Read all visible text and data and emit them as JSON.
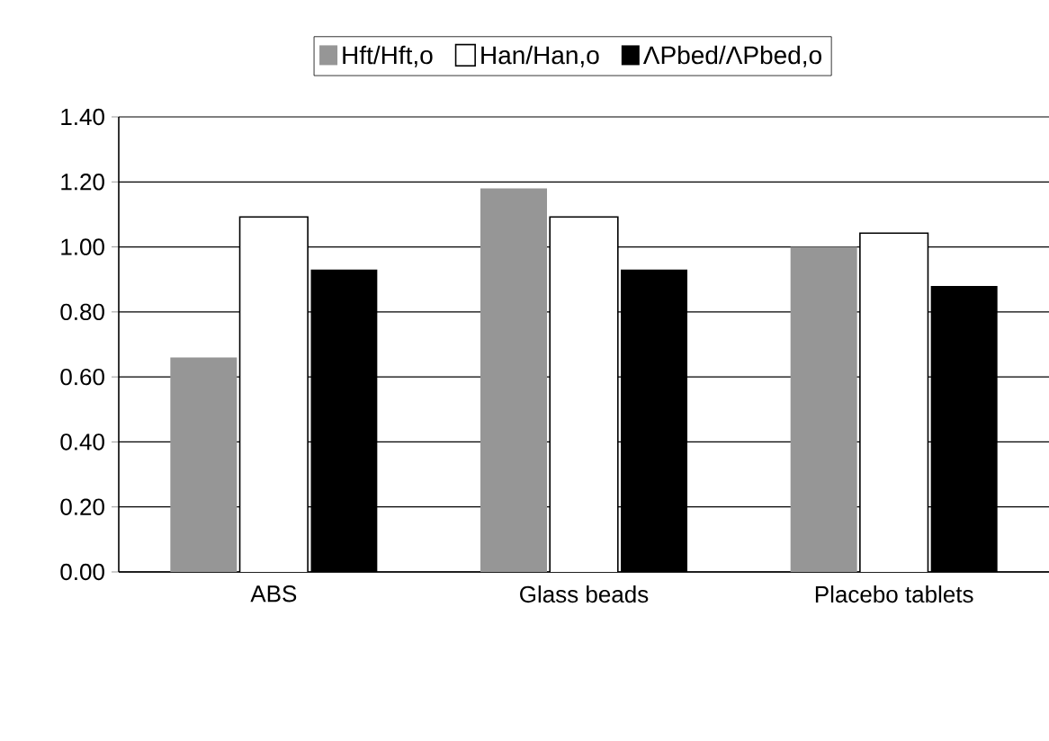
{
  "chart_data": {
    "type": "bar",
    "categories": [
      "ABS",
      "Glass beads",
      "Placebo tablets"
    ],
    "series": [
      {
        "name": "Hft/Hft,o",
        "color": "#969696",
        "values": [
          0.66,
          1.18,
          1.0
        ]
      },
      {
        "name": "Han/Han,o",
        "color": "#ffffff",
        "values": [
          1.09,
          1.09,
          1.04
        ]
      },
      {
        "name": "ΛPbed/ΛPbed,o",
        "color": "#000000",
        "values": [
          0.93,
          0.93,
          0.88
        ]
      }
    ],
    "ylim": [
      0,
      1.4
    ],
    "yticks": [
      {
        "value": 0,
        "label": "0.00"
      },
      {
        "value": 0.2,
        "label": "0.20"
      },
      {
        "value": 0.4,
        "label": "0.40"
      },
      {
        "value": 0.6,
        "label": "0.60"
      },
      {
        "value": 0.8,
        "label": "0.80"
      },
      {
        "value": 1.0,
        "label": "1.00"
      },
      {
        "value": 1.2,
        "label": "1.20"
      },
      {
        "value": 1.4,
        "label": "1.40"
      }
    ],
    "grid": "y",
    "legend": "top"
  }
}
